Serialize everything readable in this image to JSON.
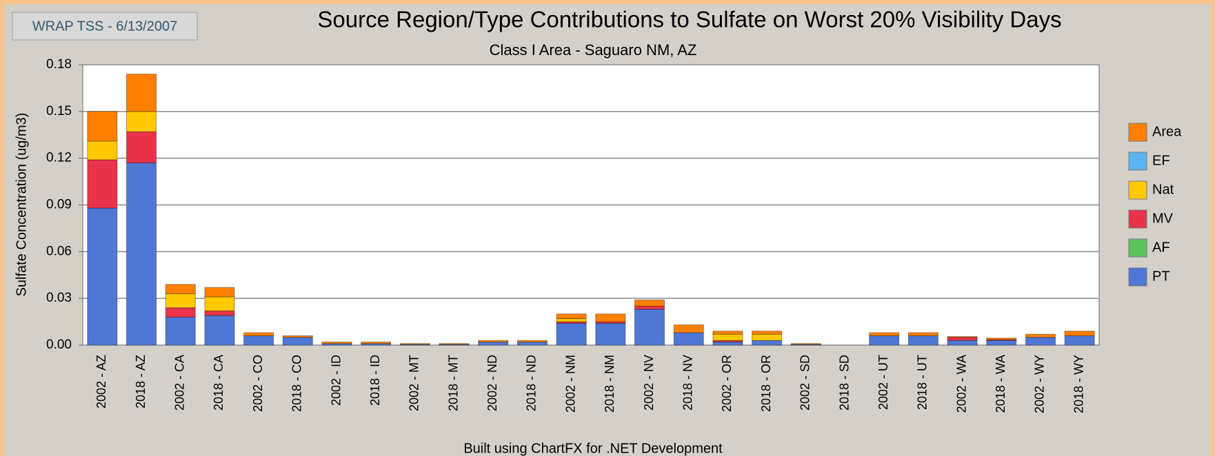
{
  "badge": "WRAP TSS - 6/13/2007",
  "footer": "Built using ChartFX for .NET Development",
  "chart_data": {
    "type": "stacked_bar",
    "title": "Source Region/Type Contributions to Sulfate on Worst 20% Visibility Days",
    "subtitle": "Class I Area - Saguaro NM, AZ",
    "ylabel": "Sulfate Concentration (ug/m3)",
    "categories": [
      "2002 - AZ",
      "2018 - AZ",
      "2002 - CA",
      "2018 - CA",
      "2002 - CO",
      "2018 - CO",
      "2002 - ID",
      "2018 - ID",
      "2002 - MT",
      "2018 - MT",
      "2002 - ND",
      "2018 - ND",
      "2002 - NM",
      "2018 - NM",
      "2002 - NV",
      "2018 - NV",
      "2002 - OR",
      "2018 - OR",
      "2002 - SD",
      "2018 - SD",
      "2002 - UT",
      "2018 - UT",
      "2002 - WA",
      "2018 - WA",
      "2002 - WY",
      "2018 - WY"
    ],
    "series": [
      {
        "name": "PT",
        "color": "#4f78d6",
        "values": [
          0.088,
          0.117,
          0.018,
          0.019,
          0.006,
          0.005,
          0.001,
          0.001,
          0.0005,
          0.0005,
          0.002,
          0.002,
          0.014,
          0.014,
          0.023,
          0.008,
          0.002,
          0.003,
          0.0005,
          0,
          0.006,
          0.006,
          0.003,
          0.003,
          0.005,
          0.006
        ]
      },
      {
        "name": "AF",
        "color": "#5cc45c",
        "values": [
          0,
          0,
          0,
          0,
          0,
          0,
          0,
          0,
          0,
          0,
          0,
          0,
          0,
          0,
          0,
          0,
          0,
          0,
          0,
          0,
          0,
          0,
          0,
          0,
          0,
          0
        ]
      },
      {
        "name": "MV",
        "color": "#e8334a",
        "values": [
          0.031,
          0.02,
          0.006,
          0.003,
          0,
          0,
          0,
          0,
          0,
          0,
          0,
          0,
          0.001,
          0.001,
          0.002,
          0,
          0.001,
          0,
          0,
          0,
          0,
          0,
          0.002,
          0.0005,
          0,
          0
        ]
      },
      {
        "name": "Nat",
        "color": "#ffc800",
        "values": [
          0.012,
          0.013,
          0.009,
          0.009,
          0,
          0,
          0,
          0,
          0,
          0,
          0,
          0,
          0.002,
          0,
          0,
          0,
          0.004,
          0.004,
          0,
          0,
          0,
          0,
          0,
          0,
          0,
          0
        ]
      },
      {
        "name": "EF",
        "color": "#5ab4f0",
        "values": [
          0,
          0,
          0,
          0,
          0,
          0,
          0,
          0,
          0,
          0,
          0,
          0,
          0,
          0,
          0,
          0,
          0,
          0,
          0,
          0,
          0,
          0,
          0,
          0,
          0,
          0
        ]
      },
      {
        "name": "Area",
        "color": "#ff8000",
        "values": [
          0.019,
          0.024,
          0.006,
          0.006,
          0.002,
          0.001,
          0.001,
          0.001,
          0.0005,
          0.0005,
          0.001,
          0.001,
          0.003,
          0.005,
          0.004,
          0.005,
          0.002,
          0.002,
          0.0005,
          0,
          0.002,
          0.002,
          0.0005,
          0.001,
          0.002,
          0.003
        ]
      }
    ],
    "ylim": [
      0,
      0.18
    ],
    "yticks": [
      {
        "value": 0,
        "label": "0.00"
      },
      0.03,
      0.06,
      0.09,
      0.12,
      0.15,
      0.18
    ],
    "grid": true,
    "legend": "right"
  }
}
